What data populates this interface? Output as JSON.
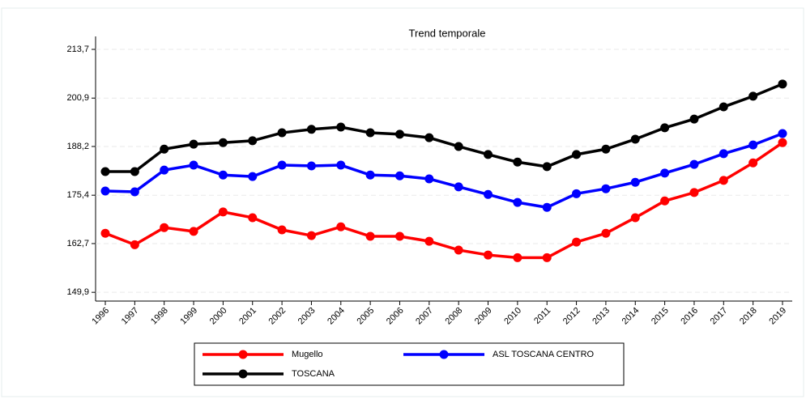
{
  "chart_data": {
    "type": "line",
    "title": "Trend temporale",
    "categories": [
      "1996",
      "1997",
      "1998",
      "1999",
      "2000",
      "2001",
      "2002",
      "2003",
      "2004",
      "2005",
      "2006",
      "2007",
      "2008",
      "2009",
      "2010",
      "2011",
      "2012",
      "2013",
      "2014",
      "2015",
      "2016",
      "2017",
      "2018",
      "2019"
    ],
    "series": [
      {
        "name": "Mugello",
        "color": "#ff0000",
        "values": [
          165.4,
          162.4,
          166.9,
          165.9,
          171.0,
          169.5,
          166.3,
          164.8,
          167.1,
          164.6,
          164.6,
          163.3,
          161.0,
          159.7,
          159.0,
          159.0,
          163.1,
          165.4,
          169.5,
          173.9,
          176.1,
          179.3,
          183.9,
          189.2
        ]
      },
      {
        "name": "ASL TOSCANA CENTRO",
        "color": "#0000ff",
        "values": [
          176.5,
          176.3,
          182.0,
          183.3,
          180.7,
          180.3,
          183.3,
          183.1,
          183.3,
          180.7,
          180.5,
          179.7,
          177.6,
          175.6,
          173.5,
          172.2,
          175.8,
          177.1,
          178.8,
          181.2,
          183.5,
          186.3,
          188.6,
          191.6
        ]
      },
      {
        "name": "TOSCANA",
        "color": "#000000",
        "values": [
          181.6,
          181.6,
          187.5,
          188.8,
          189.2,
          189.7,
          191.8,
          192.7,
          193.3,
          191.8,
          191.4,
          190.5,
          188.2,
          186.1,
          184.1,
          182.9,
          186.1,
          187.5,
          190.1,
          193.1,
          195.4,
          198.6,
          201.4,
          204.6
        ]
      }
    ],
    "ylim": [
      147.6,
      217.1
    ],
    "yticks": [
      {
        "value": 149.9,
        "label": "149,9"
      },
      {
        "value": 162.7,
        "label": "162,7"
      },
      {
        "value": 175.4,
        "label": "175,4"
      },
      {
        "value": 188.2,
        "label": "188,2"
      },
      {
        "value": 200.9,
        "label": "200,9"
      },
      {
        "value": 213.7,
        "label": "213,7"
      }
    ],
    "grid": true
  }
}
